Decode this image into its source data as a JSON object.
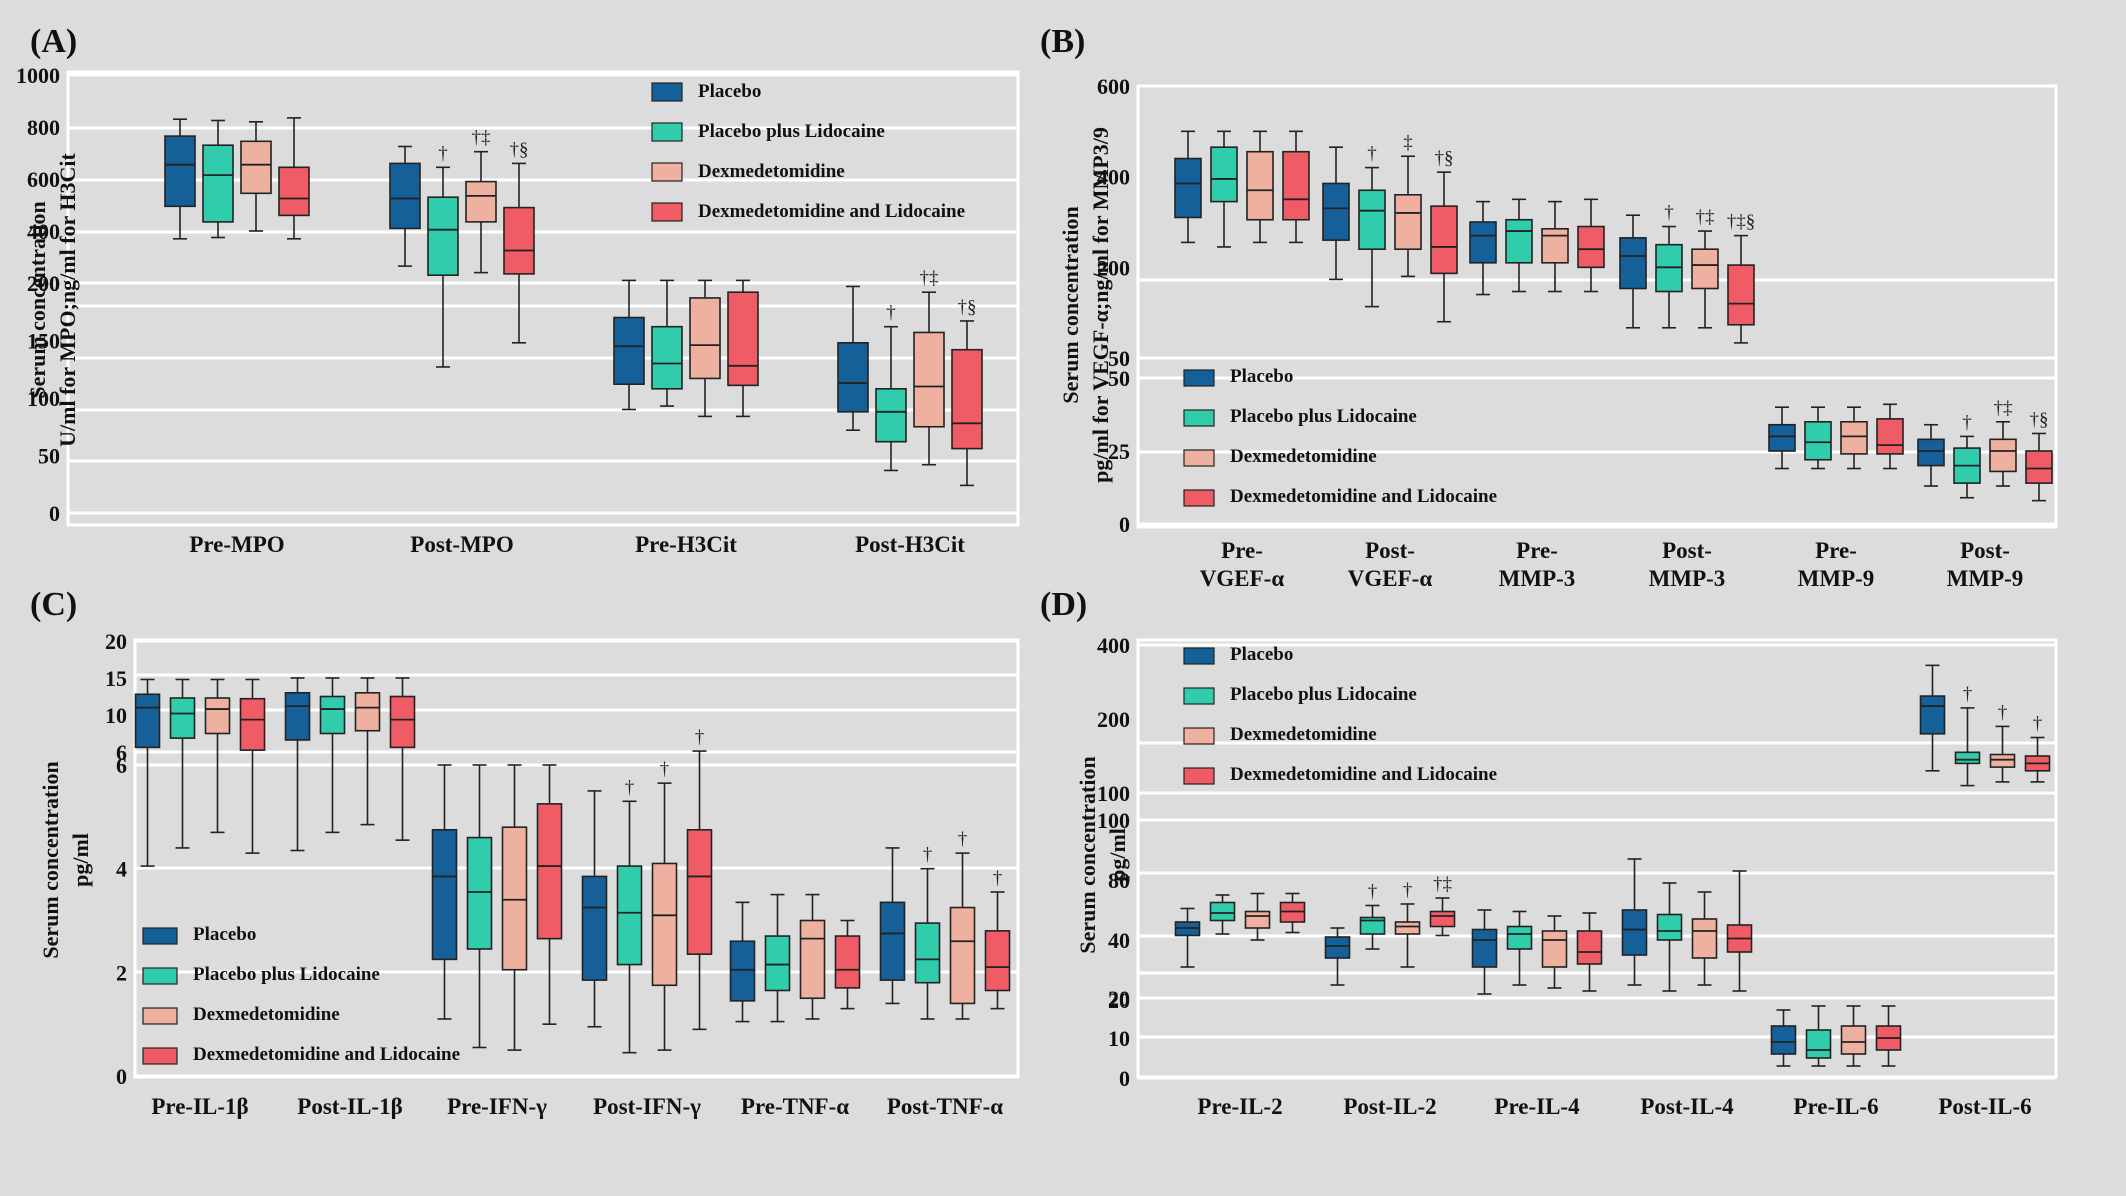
{
  "colors": {
    "series": [
      "#16609a",
      "#30ccac",
      "#eeb19f",
      "#ef5c66"
    ],
    "background": "#dcdcdc",
    "plot_bg": "#dcdcdc",
    "gridline": "#ffffff",
    "frame": "#ffffff",
    "box_edge": "#222222"
  },
  "chart_data": [
    {
      "type": "box",
      "panel": "(A)",
      "ylabel": [
        "Serum concentration",
        "U/ml for MPO;ng/ml for H3Cit"
      ],
      "series": [
        "Placebo",
        "Placebo plus Lidocaine",
        "Dexmedetomidine",
        "Dexmedetomidine and Lidocaine"
      ],
      "legend": {
        "position": "top-right"
      },
      "categories": [
        "Pre-MPO",
        "Post-MPO",
        "Pre-H3Cit",
        "Post-H3Cit"
      ],
      "segments": [
        {
          "ylim": [
            200,
            1000
          ],
          "ticks": [
            "200",
            "400",
            "600",
            "800",
            "1000"
          ]
        },
        {
          "ylim": [
            0,
            200
          ],
          "ticks": [
            "0",
            "50",
            "100",
            "150",
            "200"
          ]
        }
      ],
      "boxes": [
        [
          [
            370,
            495,
            655,
            765,
            830
          ],
          [
            375,
            435,
            615,
            730,
            825
          ],
          [
            400,
            545,
            655,
            745,
            820
          ],
          [
            370,
            460,
            525,
            645,
            835
          ]
        ],
        [
          [
            265,
            410,
            525,
            660,
            725
          ],
          [
            127,
            230,
            405,
            530,
            645
          ],
          [
            240,
            435,
            535,
            590,
            705
          ],
          [
            148,
            235,
            325,
            490,
            660
          ]
        ],
        [
          [
            90,
            112,
            145,
            170,
            210
          ],
          [
            93,
            108,
            130,
            162,
            210
          ],
          [
            84,
            117,
            146,
            187,
            210
          ],
          [
            84,
            111,
            128,
            192,
            210
          ]
        ],
        [
          [
            72,
            88,
            113,
            148,
            197
          ],
          [
            37,
            62,
            88,
            108,
            162
          ],
          [
            42,
            75,
            110,
            157,
            192
          ],
          [
            24,
            56,
            78,
            142,
            167
          ]
        ]
      ],
      "annotations": [
        {
          "category": "Post-MPO",
          "series": "Placebo plus Lidocaine",
          "text": "†"
        },
        {
          "category": "Post-MPO",
          "series": "Dexmedetomidine",
          "text": "†‡"
        },
        {
          "category": "Post-MPO",
          "series": "Dexmedetomidine and Lidocaine",
          "text": "†§"
        },
        {
          "category": "Post-H3Cit",
          "series": "Placebo plus Lidocaine",
          "text": "†"
        },
        {
          "category": "Post-H3Cit",
          "series": "Dexmedetomidine",
          "text": "†‡"
        },
        {
          "category": "Post-H3Cit",
          "series": "Dexmedetomidine and Lidocaine",
          "text": "†§"
        }
      ]
    },
    {
      "type": "box",
      "panel": "(B)",
      "ylabel": [
        "Serum concentration",
        "pg/ml for VEGF-α;ng/ml for MMP3/9"
      ],
      "series": [
        "Placebo",
        "Placebo plus Lidocaine",
        "Dexmedetomidine",
        "Dexmedetomidine and Lidocaine"
      ],
      "legend": {
        "position": "bottom-left"
      },
      "categories": [
        [
          "Pre-",
          "VGEF-α"
        ],
        [
          "Post-",
          "VGEF-α"
        ],
        [
          "Pre-",
          "MMP-3"
        ],
        [
          "Post-",
          "MMP-3"
        ],
        [
          "Pre-",
          "MMP-9"
        ],
        [
          "Post-",
          "MMP-9"
        ]
      ],
      "segments": [
        {
          "ylim": [
            50,
            600
          ],
          "ticks": [
            "50",
            "200",
            "400",
            "600"
          ]
        },
        {
          "ylim": [
            0,
            50
          ],
          "ticks": [
            "0",
            "25",
            "50"
          ]
        }
      ],
      "boxes": [
        [
          [
            255,
            310,
            385,
            440,
            500
          ],
          [
            245,
            345,
            395,
            465,
            500
          ],
          [
            255,
            305,
            370,
            455,
            500
          ],
          [
            255,
            305,
            350,
            455,
            500
          ]
        ],
        [
          [
            180,
            260,
            330,
            385,
            465
          ],
          [
            135,
            240,
            325,
            370,
            420
          ],
          [
            185,
            240,
            320,
            360,
            445
          ],
          [
            110,
            190,
            245,
            335,
            410
          ]
        ],
        [
          [
            155,
            210,
            270,
            300,
            345
          ],
          [
            160,
            210,
            280,
            305,
            350
          ],
          [
            160,
            210,
            270,
            285,
            345
          ],
          [
            160,
            200,
            240,
            290,
            350
          ]
        ],
        [
          [
            100,
            165,
            225,
            265,
            315
          ],
          [
            100,
            160,
            200,
            250,
            290
          ],
          [
            100,
            165,
            205,
            240,
            280
          ],
          [
            75,
            105,
            140,
            205,
            270
          ]
        ],
        [
          [
            19,
            25,
            30,
            34,
            40
          ],
          [
            19,
            22,
            28,
            35,
            40
          ],
          [
            19,
            24,
            30,
            35,
            40
          ],
          [
            19,
            24,
            27,
            36,
            41
          ]
        ],
        [
          [
            13,
            20,
            25,
            29,
            34
          ],
          [
            9,
            14,
            20,
            26,
            30
          ],
          [
            13,
            18,
            25,
            29,
            35
          ],
          [
            8,
            14,
            19,
            25,
            31
          ]
        ]
      ],
      "annotations": [
        {
          "category": "Post-VGEF-α",
          "series": "Placebo plus Lidocaine",
          "text": "†"
        },
        {
          "category": "Post-VGEF-α",
          "series": "Dexmedetomidine",
          "text": "‡"
        },
        {
          "category": "Post-VGEF-α",
          "series": "Dexmedetomidine and Lidocaine",
          "text": "†§"
        },
        {
          "category": "Post-MMP-3",
          "series": "Placebo plus Lidocaine",
          "text": "†"
        },
        {
          "category": "Post-MMP-3",
          "series": "Dexmedetomidine",
          "text": "†‡"
        },
        {
          "category": "Post-MMP-3",
          "series": "Dexmedetomidine and Lidocaine",
          "text": "†‡§"
        },
        {
          "category": "Post-MMP-9",
          "series": "Placebo plus Lidocaine",
          "text": "†"
        },
        {
          "category": "Post-MMP-9",
          "series": "Dexmedetomidine",
          "text": "†‡"
        },
        {
          "category": "Post-MMP-9",
          "series": "Dexmedetomidine and Lidocaine",
          "text": "†§"
        }
      ]
    },
    {
      "type": "box",
      "panel": "(C)",
      "ylabel": [
        "Serum concentration",
        "pg/ml"
      ],
      "series": [
        "Placebo",
        "Placebo plus Lidocaine",
        "Dexmedetomidine",
        "Dexmedetomidine and Lidocaine"
      ],
      "legend": {
        "position": "bottom-left"
      },
      "categories": [
        "Pre-IL-1β",
        "Post-IL-1β",
        "Pre-IFN-γ",
        "Post-IFN-γ",
        "Pre-TNF-α",
        "Post-TNF-α"
      ],
      "segments": [
        {
          "ylim": [
            6,
            20
          ],
          "ticks": [
            "6",
            "10",
            "15",
            "20"
          ]
        },
        {
          "ylim": [
            0,
            6
          ],
          "ticks": [
            "0",
            "2",
            "4",
            "6"
          ]
        }
      ],
      "boxes": [
        [
          [
            4.05,
            6.5,
            11,
            12.8,
            14.8
          ],
          [
            4.4,
            7.5,
            10.2,
            12.3,
            14.8
          ],
          [
            4.7,
            8,
            10.8,
            12.3,
            14.8
          ],
          [
            4.3,
            6.2,
            9.5,
            12.2,
            14.8
          ]
        ],
        [
          [
            4.35,
            7.3,
            11.2,
            13,
            15
          ],
          [
            4.7,
            8,
            10.8,
            12.5,
            15
          ],
          [
            4.85,
            8.3,
            11,
            13,
            15
          ],
          [
            4.55,
            6.5,
            9.5,
            12.5,
            15
          ]
        ],
        [
          [
            1.1,
            2.25,
            3.85,
            4.75,
            6
          ],
          [
            0.55,
            2.45,
            3.55,
            4.6,
            6
          ],
          [
            0.5,
            2.05,
            3.4,
            4.8,
            6
          ],
          [
            1.0,
            2.65,
            4.05,
            5.25,
            6
          ]
        ],
        [
          [
            0.95,
            1.85,
            3.25,
            3.85,
            5.5
          ],
          [
            0.45,
            2.15,
            3.15,
            4.05,
            5.3
          ],
          [
            0.5,
            1.75,
            3.1,
            4.1,
            5.65
          ],
          [
            0.9,
            2.35,
            3.85,
            4.75,
            6.1
          ]
        ],
        [
          [
            1.05,
            1.45,
            2.05,
            2.6,
            3.35
          ],
          [
            1.05,
            1.65,
            2.15,
            2.7,
            3.5
          ],
          [
            1.1,
            1.5,
            2.65,
            3.0,
            3.5
          ],
          [
            1.3,
            1.7,
            2.05,
            2.7,
            3.0
          ]
        ],
        [
          [
            1.4,
            1.85,
            2.75,
            3.35,
            4.4
          ],
          [
            1.1,
            1.8,
            2.25,
            2.95,
            4.0
          ],
          [
            1.1,
            1.4,
            2.6,
            3.25,
            4.3
          ],
          [
            1.3,
            1.65,
            2.1,
            2.8,
            3.55
          ]
        ]
      ],
      "annotations": [
        {
          "category": "Post-IFN-γ",
          "series": "Placebo plus Lidocaine",
          "text": "†"
        },
        {
          "category": "Post-IFN-γ",
          "series": "Dexmedetomidine",
          "text": "†"
        },
        {
          "category": "Post-IFN-γ",
          "series": "Dexmedetomidine and Lidocaine",
          "text": "†"
        },
        {
          "category": "Post-TNF-α",
          "series": "Placebo plus Lidocaine",
          "text": "†"
        },
        {
          "category": "Post-TNF-α",
          "series": "Dexmedetomidine",
          "text": "†"
        },
        {
          "category": "Post-TNF-α",
          "series": "Dexmedetomidine and Lidocaine",
          "text": "†"
        }
      ]
    },
    {
      "type": "box",
      "panel": "(D)",
      "ylabel": [
        "Serum concentration",
        "pg/ml"
      ],
      "series": [
        "Placebo",
        "Placebo plus Lidocaine",
        "Dexmedetomidine",
        "Dexmedetomidine and Lidocaine"
      ],
      "legend": {
        "position": "top-left"
      },
      "categories": [
        "Pre-IL-2",
        "Post-IL-2",
        "Pre-IL-4",
        "Post-IL-4",
        "Pre-IL-6",
        "Post-IL-6"
      ],
      "segments": [
        {
          "ylim": [
            100,
            400
          ],
          "ticks": [
            "100",
            "200",
            "400"
          ]
        },
        {
          "ylim": [
            20,
            100
          ],
          "ticks": [
            "20",
            "40",
            "80",
            "100"
          ]
        },
        {
          "ylim": [
            0,
            20
          ],
          "ticks": [
            "0",
            "10",
            "20"
          ]
        }
      ],
      "boxes": [
        [
          [
            31,
            43,
            48,
            52,
            61
          ],
          [
            44,
            53,
            58,
            65,
            70
          ],
          [
            40,
            48,
            56,
            59,
            71
          ],
          [
            45,
            52,
            59,
            65,
            71
          ]
        ],
        [
          [
            25,
            34,
            38,
            42,
            48
          ],
          [
            37,
            44,
            53,
            55,
            63
          ],
          [
            31,
            44,
            49,
            52,
            64
          ],
          [
            43,
            49,
            56,
            59,
            68
          ]
        ],
        [
          [
            22,
            31,
            40,
            47,
            60
          ],
          [
            25,
            37,
            44,
            49,
            59
          ],
          [
            24,
            31,
            40,
            46,
            56
          ],
          [
            23,
            32,
            36,
            46,
            58
          ]
        ],
        [
          [
            25,
            35,
            47,
            60,
            87
          ],
          [
            23,
            40,
            46,
            57,
            78
          ],
          [
            25,
            34,
            46,
            54,
            72
          ],
          [
            23,
            36,
            41,
            50,
            83
          ]
        ],
        [
          [
            3,
            6,
            9,
            13,
            17
          ],
          [
            3,
            5,
            7,
            12,
            18
          ],
          [
            3,
            6,
            9,
            13,
            18
          ],
          [
            3,
            7,
            10,
            13,
            18
          ]
        ],
        [
          [
            130,
            180,
            235,
            262,
            345
          ],
          [
            110,
            140,
            145,
            155,
            230
          ],
          [
            115,
            135,
            145,
            152,
            190
          ],
          [
            115,
            130,
            140,
            150,
            175
          ]
        ]
      ],
      "annotations": [
        {
          "category": "Post-IL-2",
          "series": "Placebo plus Lidocaine",
          "text": "†"
        },
        {
          "category": "Post-IL-2",
          "series": "Dexmedetomidine",
          "text": "†"
        },
        {
          "category": "Post-IL-2",
          "series": "Dexmedetomidine and Lidocaine",
          "text": "†‡"
        },
        {
          "category": "Post-IL-6",
          "series": "Placebo plus Lidocaine",
          "text": "†"
        },
        {
          "category": "Post-IL-6",
          "series": "Dexmedetomidine",
          "text": "†"
        },
        {
          "category": "Post-IL-6",
          "series": "Dexmedetomidine and Lidocaine",
          "text": "†"
        }
      ]
    }
  ]
}
